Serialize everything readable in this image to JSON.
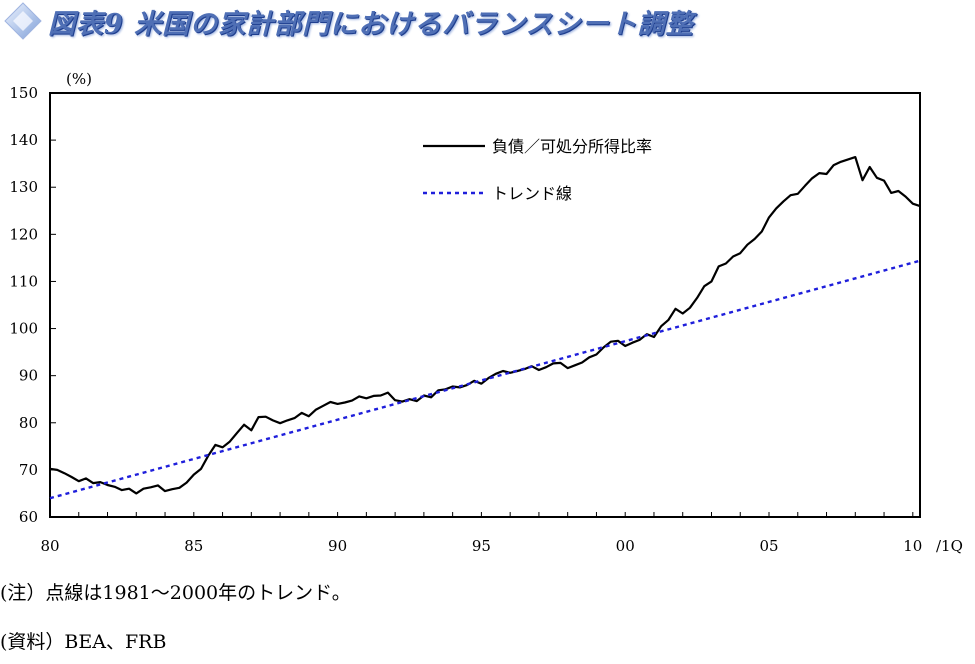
{
  "header": {
    "title": "図表9 米国の家計部門におけるバランスシート調整",
    "icon": "diamond-icon",
    "title_color": "#4f6fb5"
  },
  "chart_data": {
    "type": "line",
    "title": "",
    "ylabel": "(%)",
    "xlabel": "",
    "ylim": [
      60,
      150
    ],
    "xlim": [
      1980.0,
      2010.25
    ],
    "yticks": [
      60,
      70,
      80,
      90,
      100,
      110,
      120,
      130,
      140,
      150
    ],
    "xtick_values": [
      1980,
      1985,
      1990,
      1995,
      2000,
      2005,
      2010
    ],
    "xtick_labels": [
      "80",
      "85",
      "90",
      "95",
      "00",
      "05",
      "10"
    ],
    "x_end_suffix": "/1Q",
    "grid": false,
    "legend_position": "top-center",
    "series": [
      {
        "name": "負債／可処分所得比率",
        "color": "#000000",
        "style": "solid",
        "points": [
          [
            1980.0,
            70.2
          ],
          [
            1980.25,
            70.0
          ],
          [
            1980.5,
            69.3
          ],
          [
            1980.75,
            68.5
          ],
          [
            1981.0,
            67.6
          ],
          [
            1981.25,
            68.2
          ],
          [
            1981.5,
            67.2
          ],
          [
            1981.75,
            67.4
          ],
          [
            1982.0,
            66.8
          ],
          [
            1982.25,
            66.4
          ],
          [
            1982.5,
            65.7
          ],
          [
            1982.75,
            66.0
          ],
          [
            1983.0,
            65.0
          ],
          [
            1983.25,
            66.0
          ],
          [
            1983.5,
            66.3
          ],
          [
            1983.75,
            66.7
          ],
          [
            1984.0,
            65.5
          ],
          [
            1984.25,
            65.9
          ],
          [
            1984.5,
            66.2
          ],
          [
            1984.75,
            67.3
          ],
          [
            1985.0,
            69.0
          ],
          [
            1985.25,
            70.2
          ],
          [
            1985.5,
            73.0
          ],
          [
            1985.75,
            75.3
          ],
          [
            1986.0,
            74.8
          ],
          [
            1986.25,
            76.0
          ],
          [
            1986.5,
            77.8
          ],
          [
            1986.75,
            79.6
          ],
          [
            1987.0,
            78.4
          ],
          [
            1987.25,
            81.2
          ],
          [
            1987.5,
            81.3
          ],
          [
            1987.75,
            80.5
          ],
          [
            1988.0,
            79.9
          ],
          [
            1988.25,
            80.5
          ],
          [
            1988.5,
            81.0
          ],
          [
            1988.75,
            82.1
          ],
          [
            1989.0,
            81.4
          ],
          [
            1989.25,
            82.8
          ],
          [
            1989.5,
            83.6
          ],
          [
            1989.75,
            84.4
          ],
          [
            1990.0,
            84.0
          ],
          [
            1990.25,
            84.3
          ],
          [
            1990.5,
            84.7
          ],
          [
            1990.75,
            85.6
          ],
          [
            1991.0,
            85.2
          ],
          [
            1991.25,
            85.7
          ],
          [
            1991.5,
            85.8
          ],
          [
            1991.75,
            86.4
          ],
          [
            1992.0,
            84.8
          ],
          [
            1992.25,
            84.5
          ],
          [
            1992.5,
            85.0
          ],
          [
            1992.75,
            84.6
          ],
          [
            1993.0,
            85.8
          ],
          [
            1993.25,
            85.4
          ],
          [
            1993.5,
            86.9
          ],
          [
            1993.75,
            87.1
          ],
          [
            1994.0,
            87.7
          ],
          [
            1994.25,
            87.5
          ],
          [
            1994.5,
            88.0
          ],
          [
            1994.75,
            88.9
          ],
          [
            1995.0,
            88.3
          ],
          [
            1995.25,
            89.5
          ],
          [
            1995.5,
            90.4
          ],
          [
            1995.75,
            91.0
          ],
          [
            1996.0,
            90.6
          ],
          [
            1996.25,
            91.0
          ],
          [
            1996.5,
            91.4
          ],
          [
            1996.75,
            92.0
          ],
          [
            1997.0,
            91.2
          ],
          [
            1997.25,
            91.8
          ],
          [
            1997.5,
            92.6
          ],
          [
            1997.75,
            92.7
          ],
          [
            1998.0,
            91.6
          ],
          [
            1998.25,
            92.2
          ],
          [
            1998.5,
            92.8
          ],
          [
            1998.75,
            93.9
          ],
          [
            1999.0,
            94.5
          ],
          [
            1999.25,
            96.0
          ],
          [
            1999.5,
            97.2
          ],
          [
            1999.75,
            97.4
          ],
          [
            2000.0,
            96.3
          ],
          [
            2000.25,
            97.0
          ],
          [
            2000.5,
            97.6
          ],
          [
            2000.75,
            98.8
          ],
          [
            2001.0,
            98.2
          ],
          [
            2001.25,
            100.5
          ],
          [
            2001.5,
            101.8
          ],
          [
            2001.75,
            104.2
          ],
          [
            2002.0,
            103.2
          ],
          [
            2002.25,
            104.4
          ],
          [
            2002.5,
            106.5
          ],
          [
            2002.75,
            109.0
          ],
          [
            2003.0,
            110.0
          ],
          [
            2003.25,
            113.2
          ],
          [
            2003.5,
            113.8
          ],
          [
            2003.75,
            115.3
          ],
          [
            2004.0,
            116.0
          ],
          [
            2004.25,
            117.8
          ],
          [
            2004.5,
            119.0
          ],
          [
            2004.75,
            120.6
          ],
          [
            2005.0,
            123.6
          ],
          [
            2005.25,
            125.5
          ],
          [
            2005.5,
            127.0
          ],
          [
            2005.75,
            128.3
          ],
          [
            2006.0,
            128.6
          ],
          [
            2006.25,
            130.3
          ],
          [
            2006.5,
            131.9
          ],
          [
            2006.75,
            133.0
          ],
          [
            2007.0,
            132.8
          ],
          [
            2007.25,
            134.7
          ],
          [
            2007.5,
            135.4
          ],
          [
            2007.75,
            135.9
          ],
          [
            2008.0,
            136.4
          ],
          [
            2008.25,
            131.5
          ],
          [
            2008.5,
            134.3
          ],
          [
            2008.75,
            132.0
          ],
          [
            2009.0,
            131.4
          ],
          [
            2009.25,
            128.8
          ],
          [
            2009.5,
            129.2
          ],
          [
            2009.75,
            128.0
          ],
          [
            2010.0,
            126.5
          ],
          [
            2010.25,
            126.0
          ]
        ]
      },
      {
        "name": "トレンド線",
        "color": "#1f1fdb",
        "style": "dotted",
        "points": [
          [
            1980.0,
            64.0
          ],
          [
            2010.25,
            114.4
          ]
        ]
      }
    ]
  },
  "notes": {
    "note": "(注）点線は1981～2000年のトレンド。",
    "source": "(資料）BEA、FRB"
  }
}
